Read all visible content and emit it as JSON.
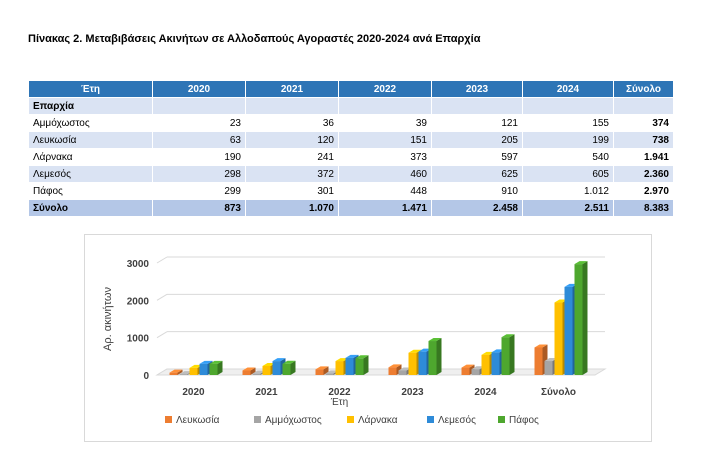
{
  "title": "Πίνακας 2. Μεταβιβάσεις Ακινήτων σε Αλλοδαπούς Αγοραστές 2020-2024 ανά Επαρχία",
  "table": {
    "header": [
      "Έτη",
      "2020",
      "2021",
      "2022",
      "2023",
      "2024",
      "Σύνολο"
    ],
    "section_label": "Επαρχία",
    "rows": [
      {
        "label": "Αμμόχωστος",
        "values": [
          "23",
          "36",
          "39",
          "121",
          "155"
        ],
        "total": "374"
      },
      {
        "label": "Λευκωσία",
        "values": [
          "63",
          "120",
          "151",
          "205",
          "199"
        ],
        "total": "738"
      },
      {
        "label": "Λάρνακα",
        "values": [
          "190",
          "241",
          "373",
          "597",
          "540"
        ],
        "total": "1.941"
      },
      {
        "label": "Λεμεσός",
        "values": [
          "298",
          "372",
          "460",
          "625",
          "605"
        ],
        "total": "2.360"
      },
      {
        "label": "Πάφος",
        "values": [
          "299",
          "301",
          "448",
          "910",
          "1.012"
        ],
        "total": "2.970"
      }
    ],
    "total_row": {
      "label": "Σύνολο",
      "values": [
        "873",
        "1.070",
        "1.471",
        "2.458",
        "2.511"
      ],
      "total": "8.383"
    }
  },
  "chart_data": {
    "type": "bar",
    "style": "3d-clustered-column",
    "categories": [
      "2020",
      "2021",
      "2022",
      "2023",
      "2024",
      "Σύνολο"
    ],
    "xlabel": "Έτη",
    "ylabel": "Αρ. ακινήτων",
    "ylim": [
      0,
      3000
    ],
    "yticks": [
      0,
      1000,
      2000,
      3000
    ],
    "grid": true,
    "legend": "bottom",
    "series": [
      {
        "name": "Λευκωσία",
        "color": "#ed7d31",
        "values": [
          63,
          120,
          151,
          205,
          199,
          738
        ]
      },
      {
        "name": "Αμμόχωστος",
        "color": "#a5a5a5",
        "values": [
          23,
          36,
          39,
          121,
          155,
          374
        ]
      },
      {
        "name": "Λάρνακα",
        "color": "#ffc000",
        "values": [
          190,
          241,
          373,
          597,
          540,
          1941
        ]
      },
      {
        "name": "Λεμεσός",
        "color": "#2e8bd8",
        "values": [
          298,
          372,
          460,
          625,
          605,
          2360
        ]
      },
      {
        "name": "Πάφος",
        "color": "#4ea72e",
        "values": [
          299,
          301,
          448,
          910,
          1012,
          2970
        ]
      }
    ]
  }
}
